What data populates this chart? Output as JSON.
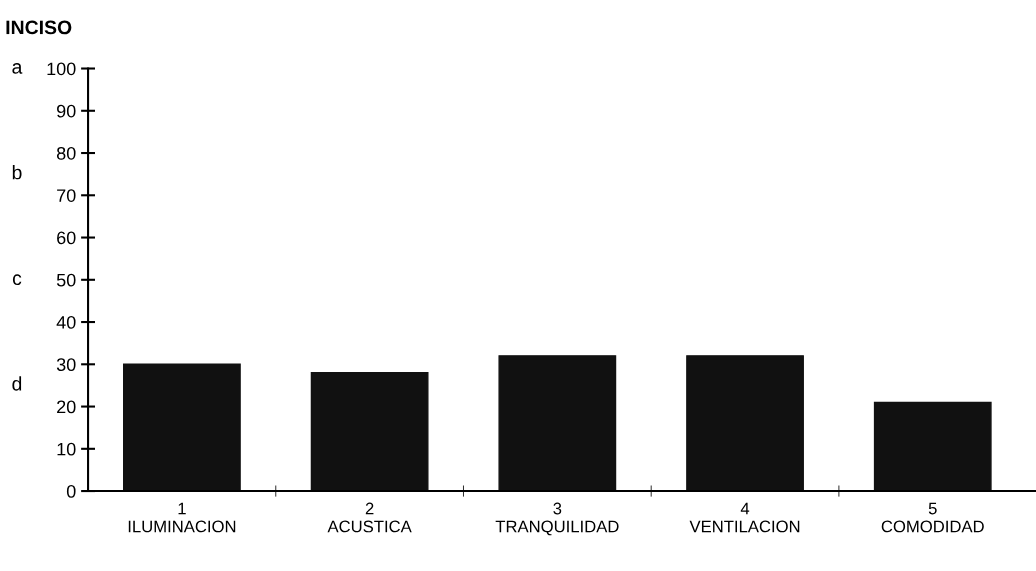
{
  "chart_data": {
    "type": "bar",
    "title": "INCISO",
    "categories": [
      "1\nILUMINACION",
      "2\nACUSTICA",
      "3\nTRANQUILIDAD",
      "4\nVENTILACION",
      "5\nCOMODIDAD"
    ],
    "values": [
      30,
      28,
      32,
      32,
      21
    ],
    "color": "#111111",
    "ylim": [
      0,
      100
    ],
    "yticks": [
      0,
      10,
      20,
      30,
      40,
      50,
      60,
      70,
      80,
      90,
      100
    ],
    "grid": false,
    "annotations": [
      "a",
      "b",
      "c",
      "d"
    ]
  }
}
